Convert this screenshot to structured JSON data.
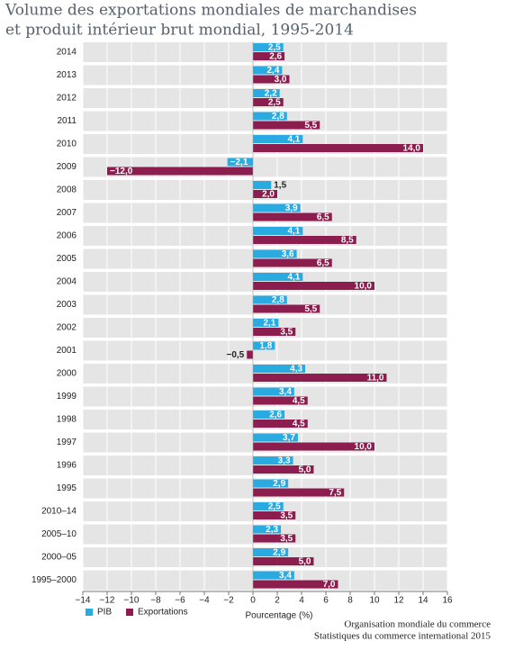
{
  "chart_data": {
    "type": "hbar",
    "title": "Volume des exportations mondiales de marchandises",
    "subtitle": "et produit intérieur brut mondial, 1995-2014",
    "categories": [
      "2014",
      "2013",
      "2012",
      "2011",
      "2010",
      "2009",
      "2008",
      "2007",
      "2006",
      "2005",
      "2004",
      "2003",
      "2002",
      "2001",
      "2000",
      "1999",
      "1998",
      "1997",
      "1996",
      "1995",
      "2010–14",
      "2005–10",
      "2000–05",
      "1995–2000"
    ],
    "series": [
      {
        "name": "PIB",
        "color": "#29abe2",
        "values": [
          2.5,
          2.4,
          2.2,
          2.8,
          4.1,
          -2.1,
          1.5,
          3.9,
          4.1,
          3.6,
          4.1,
          2.8,
          2.1,
          1.8,
          4.3,
          3.4,
          2.6,
          3.7,
          3.3,
          2.9,
          2.5,
          2.3,
          2.9,
          3.4
        ],
        "value_labels": [
          "2,5",
          "2,4",
          "2,2",
          "2,8",
          "4,1",
          "−2,1",
          "1,5",
          "3,9",
          "4,1",
          "3,6",
          "4,1",
          "2,8",
          "2,1",
          "1,8",
          "4,3",
          "3,4",
          "2,6",
          "3,7",
          "3,3",
          "2,9",
          "2,5",
          "2,3",
          "2,9",
          "3,4"
        ]
      },
      {
        "name": "Exportations",
        "color": "#8c1d4f",
        "values": [
          2.6,
          3.0,
          2.5,
          5.5,
          14.0,
          -12.0,
          2.0,
          6.5,
          8.5,
          6.5,
          10.0,
          5.5,
          3.5,
          -0.5,
          11.0,
          4.5,
          4.5,
          10.0,
          5.0,
          7.5,
          3.5,
          3.5,
          5.0,
          7.0
        ],
        "value_labels": [
          "2,6",
          "3,0",
          "2,5",
          "5,5",
          "14,0",
          "−12,0",
          "2,0",
          "6,5",
          "8,5",
          "6,5",
          "10,0",
          "5,5",
          "3,5",
          "−0,5",
          "11,0",
          "4,5",
          "4,5",
          "10,0",
          "5,0",
          "7,5",
          "3,5",
          "3,5",
          "5,0",
          "7,0"
        ]
      }
    ],
    "xlim": [
      -14,
      16
    ],
    "xticks": [
      {
        "value": -14,
        "label": "−14"
      },
      {
        "value": -12,
        "label": "−12"
      },
      {
        "value": -10,
        "label": "−10"
      },
      {
        "value": -8,
        "label": "−8"
      },
      {
        "value": -6,
        "label": "−6"
      },
      {
        "value": -4,
        "label": "−4"
      },
      {
        "value": -2,
        "label": "−2"
      },
      0,
      2,
      4,
      6,
      8,
      10,
      12,
      14,
      16
    ],
    "xlabel": "Pourcentage (%)",
    "source": [
      "Organisation mondiale du commerce",
      "Statistiques du commerce international 2015"
    ],
    "grid": true
  }
}
